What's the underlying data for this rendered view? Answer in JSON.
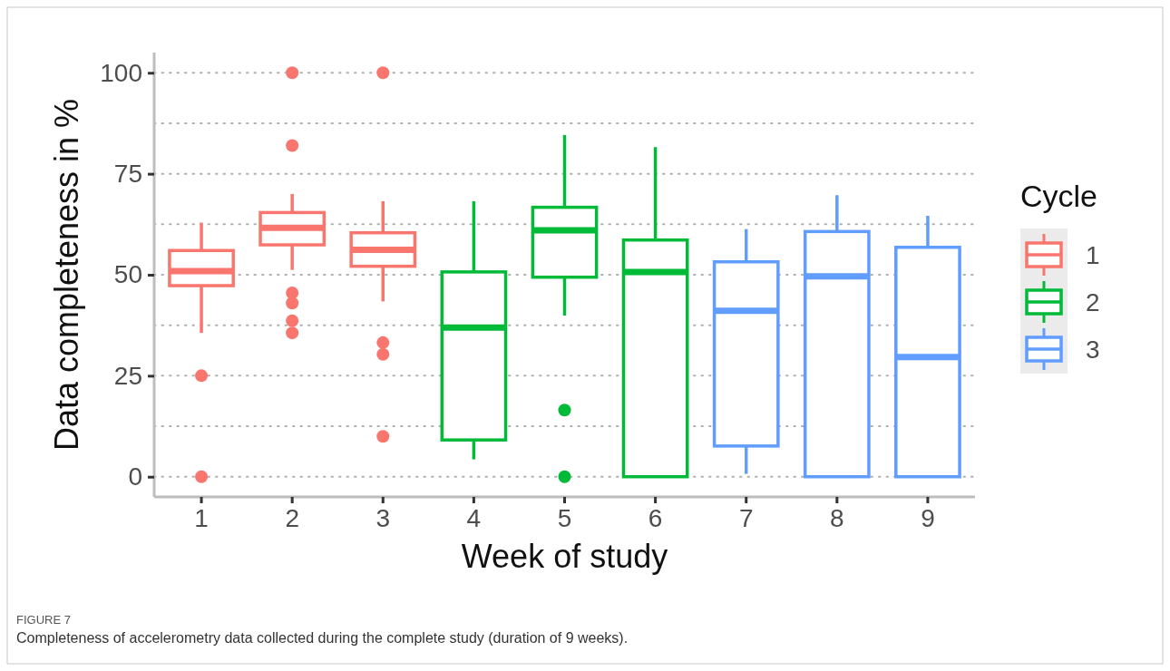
{
  "chart_data": {
    "type": "box",
    "xlabel": "Week of study",
    "ylabel": "Data completeness in %",
    "legend_title": "Cycle",
    "legend": "right",
    "grid": "y",
    "categories": [
      "1",
      "2",
      "3",
      "4",
      "5",
      "6",
      "7",
      "8",
      "9"
    ],
    "ylim": [
      -5,
      105
    ],
    "yticks": [
      0,
      {
        "value": 12.5,
        "label": null
      },
      25,
      {
        "value": 37.5,
        "label": null
      },
      50,
      {
        "value": 62.5,
        "label": null
      },
      75,
      {
        "value": 87.5,
        "label": null
      },
      100
    ],
    "series": [
      {
        "name": "1",
        "color": "#f8766d",
        "boxes": [
          {
            "low": 35.6,
            "q1": 47.3,
            "median": 50.9,
            "q3": 56,
            "high": 62.9,
            "outliers": [
              25,
              0
            ]
          },
          {
            "low": 51.2,
            "q1": 57.4,
            "median": 61.6,
            "q3": 65.4,
            "high": 70,
            "outliers": [
              100,
              82,
              45.5,
              43,
              38.6,
              35.6
            ]
          },
          {
            "low": 43.4,
            "q1": 52.1,
            "median": 56.2,
            "q3": 60.4,
            "high": 68.2,
            "outliers": [
              100,
              33.2,
              30.3,
              10
            ]
          },
          null,
          null,
          null,
          null,
          null,
          null
        ]
      },
      {
        "name": "2",
        "color": "#00ba38",
        "boxes": [
          null,
          null,
          null,
          {
            "low": 4.3,
            "q1": 9.1,
            "median": 36.9,
            "q3": 50.7,
            "high": 68.2
          },
          {
            "low": 39.9,
            "q1": 49.4,
            "median": 61,
            "q3": 66.7,
            "high": 84.6,
            "outliers": [
              16.5,
              0
            ]
          },
          {
            "low": 0,
            "q1": 0,
            "median": 50.7,
            "q3": 58.6,
            "high": 81.6
          },
          null,
          null,
          null
        ]
      },
      {
        "name": "3",
        "color": "#619cff",
        "boxes": [
          null,
          null,
          null,
          null,
          null,
          null,
          {
            "low": 0.7,
            "q1": 7.6,
            "median": 41.1,
            "q3": 53.2,
            "high": 61.3
          },
          {
            "low": 0,
            "q1": 0,
            "median": 49.6,
            "q3": 60.7,
            "high": 69.7
          },
          {
            "low": 0,
            "q1": 0,
            "median": 29.6,
            "q3": 56.8,
            "high": 64.6
          }
        ]
      }
    ],
    "annotations": [
      "FIGURE 7",
      "Completeness of accelerometry data collected during the complete study (duration of 9 weeks)."
    ]
  }
}
